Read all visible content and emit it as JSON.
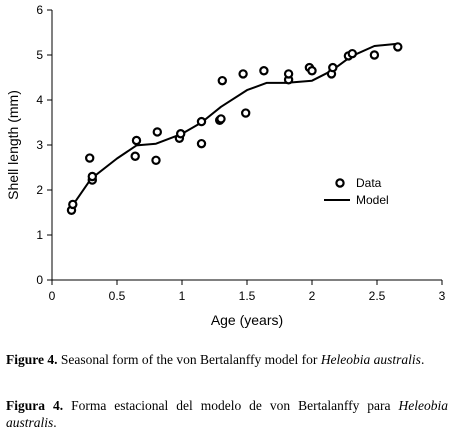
{
  "chart_data": {
    "type": "scatter",
    "xlabel": "Age (years)",
    "ylabel": "Shell length (mm)",
    "xlim": [
      0,
      3
    ],
    "ylim": [
      0,
      6
    ],
    "x_ticks": [
      "0",
      "0.5",
      "1",
      "1.5",
      "2",
      "2.5",
      "3"
    ],
    "y_ticks": [
      "0",
      "1",
      "2",
      "3",
      "4",
      "5",
      "6"
    ],
    "grid": false,
    "legend_position": "right-middle",
    "series": [
      {
        "name": "Data",
        "marker": "open-circle",
        "points": [
          [
            0.15,
            1.55
          ],
          [
            0.16,
            1.68
          ],
          [
            0.29,
            2.71
          ],
          [
            0.31,
            2.22
          ],
          [
            0.31,
            2.3
          ],
          [
            0.64,
            2.75
          ],
          [
            0.65,
            3.1
          ],
          [
            0.8,
            2.66
          ],
          [
            0.81,
            3.29
          ],
          [
            0.98,
            3.15
          ],
          [
            0.99,
            3.25
          ],
          [
            1.15,
            3.03
          ],
          [
            1.15,
            3.52
          ],
          [
            1.29,
            3.55
          ],
          [
            1.3,
            3.58
          ],
          [
            1.31,
            4.43
          ],
          [
            1.47,
            4.58
          ],
          [
            1.49,
            3.71
          ],
          [
            1.63,
            4.65
          ],
          [
            1.82,
            4.45
          ],
          [
            1.82,
            4.58
          ],
          [
            1.98,
            4.72
          ],
          [
            2.0,
            4.65
          ],
          [
            2.15,
            4.58
          ],
          [
            2.16,
            4.72
          ],
          [
            2.28,
            4.98
          ],
          [
            2.31,
            5.03
          ],
          [
            2.48,
            5.0
          ],
          [
            2.66,
            5.18
          ]
        ]
      },
      {
        "name": "Model",
        "marker": "line",
        "points": [
          [
            0.15,
            1.62
          ],
          [
            0.3,
            2.25
          ],
          [
            0.5,
            2.7
          ],
          [
            0.65,
            2.99
          ],
          [
            0.8,
            3.03
          ],
          [
            1.0,
            3.25
          ],
          [
            1.15,
            3.5
          ],
          [
            1.3,
            3.85
          ],
          [
            1.5,
            4.22
          ],
          [
            1.65,
            4.38
          ],
          [
            1.8,
            4.38
          ],
          [
            2.0,
            4.43
          ],
          [
            2.15,
            4.65
          ],
          [
            2.3,
            4.97
          ],
          [
            2.48,
            5.2
          ],
          [
            2.66,
            5.25
          ]
        ]
      }
    ]
  },
  "caption": {
    "en_label": "Figure 4.",
    "en_text": " Seasonal form of the von Bertalanffy model for ",
    "en_species": "Heleobia australis",
    "en_end": ".",
    "es_label": "Figura 4.",
    "es_text": " Forma estacional del modelo de von Bertalanffy para ",
    "es_species": "Heleobia australis",
    "es_end": "."
  }
}
